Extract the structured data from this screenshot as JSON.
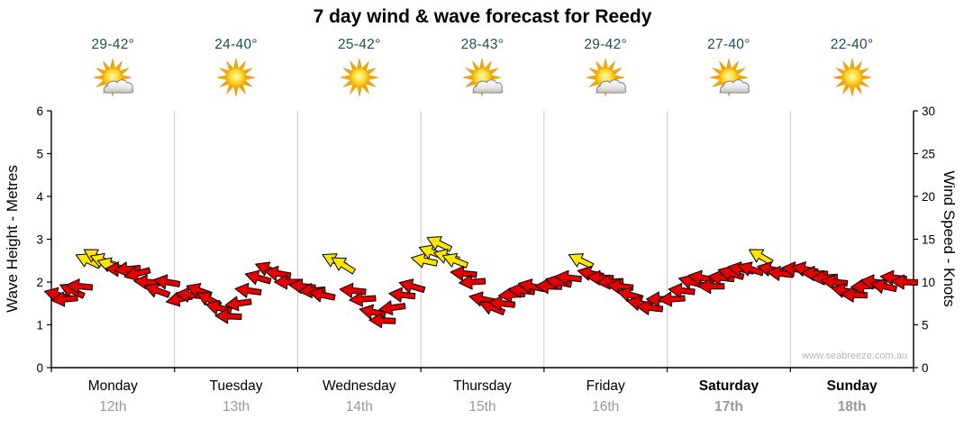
{
  "title": "7 day wind & wave forecast for Reedy",
  "watermark": "www.seabreeze.com.au",
  "days": [
    {
      "name": "Monday",
      "date": "12th",
      "temp": "29-42°",
      "icon": "sun-cloud",
      "bold": false
    },
    {
      "name": "Tuesday",
      "date": "13th",
      "temp": "24-40°",
      "icon": "sun",
      "bold": false
    },
    {
      "name": "Wednesday",
      "date": "14th",
      "temp": "25-42°",
      "icon": "sun",
      "bold": false
    },
    {
      "name": "Thursday",
      "date": "15th",
      "temp": "28-43°",
      "icon": "sun-cloud",
      "bold": false
    },
    {
      "name": "Friday",
      "date": "16th",
      "temp": "29-42°",
      "icon": "sun-cloud",
      "bold": false
    },
    {
      "name": "Saturday",
      "date": "17th",
      "temp": "27-40°",
      "icon": "sun-cloud",
      "bold": true
    },
    {
      "name": "Sunday",
      "date": "18th",
      "temp": "22-40°",
      "icon": "sun",
      "bold": true
    }
  ],
  "axes": {
    "left": {
      "title": "Wave Height - Metres",
      "ticks": [
        0,
        1,
        2,
        3,
        4,
        5,
        6
      ],
      "max": 6
    },
    "right": {
      "title": "Wind Speed - Knots",
      "ticks": [
        0,
        5,
        10,
        15,
        20,
        25,
        30
      ],
      "max": 30
    }
  },
  "colors": {
    "arrow_low": "#e40000",
    "arrow_high": "#ffe600",
    "temp_text": "#1d4f5c",
    "date_text": "#999999",
    "grid": "#c9c9c9",
    "axis": "#000000",
    "watermark": "#b5b5b5"
  },
  "chart_data": {
    "type": "scatter",
    "description": "Wind forecast arrows: x = day offset across the week (0 = start of Monday, 7 = end of Sunday), knots = wind speed read on the right axis (wave height m = knots/5 on left axis), dir = arrow rotation in degrees (0 = pointing right, clockwise). Arrows at or above the yellow threshold are drawn yellow, otherwise red.",
    "x_range": [
      0,
      7
    ],
    "wind_speed_range_knots": [
      0,
      30
    ],
    "wave_height_range_m": [
      0,
      6
    ],
    "yellow_threshold_knots": 12,
    "points": [
      [
        0.05,
        8.5,
        195
      ],
      [
        0.11,
        8,
        175
      ],
      [
        0.17,
        9,
        205
      ],
      [
        0.23,
        9.5,
        185
      ],
      [
        0.3,
        12.5,
        205
      ],
      [
        0.36,
        13,
        210
      ],
      [
        0.42,
        12.5,
        200
      ],
      [
        0.48,
        12,
        198
      ],
      [
        0.55,
        11.5,
        182
      ],
      [
        0.62,
        11.5,
        175
      ],
      [
        0.7,
        11,
        165
      ],
      [
        0.78,
        10,
        185
      ],
      [
        0.86,
        9,
        200
      ],
      [
        0.94,
        10,
        190
      ],
      [
        1.04,
        8,
        168
      ],
      [
        1.12,
        8.5,
        185
      ],
      [
        1.2,
        9,
        200
      ],
      [
        1.28,
        8,
        208
      ],
      [
        1.36,
        7,
        195
      ],
      [
        1.44,
        6,
        182
      ],
      [
        1.52,
        7.5,
        172
      ],
      [
        1.6,
        9,
        188
      ],
      [
        1.68,
        10.5,
        196
      ],
      [
        1.76,
        11.5,
        202
      ],
      [
        1.84,
        11,
        190
      ],
      [
        1.92,
        10,
        180
      ],
      [
        2.04,
        9.5,
        186
      ],
      [
        2.12,
        9,
        176
      ],
      [
        2.2,
        8.5,
        192
      ],
      [
        2.3,
        12.5,
        206
      ],
      [
        2.37,
        12,
        212
      ],
      [
        2.45,
        9,
        186
      ],
      [
        2.53,
        8,
        176
      ],
      [
        2.61,
        6.5,
        192
      ],
      [
        2.69,
        5.5,
        182
      ],
      [
        2.77,
        7,
        172
      ],
      [
        2.85,
        8.5,
        186
      ],
      [
        2.93,
        9.5,
        196
      ],
      [
        3.03,
        12.5,
        192
      ],
      [
        3.09,
        13.5,
        200
      ],
      [
        3.15,
        14.5,
        206
      ],
      [
        3.21,
        13,
        196
      ],
      [
        3.28,
        12.5,
        202
      ],
      [
        3.35,
        11,
        186
      ],
      [
        3.42,
        10,
        176
      ],
      [
        3.5,
        8,
        192
      ],
      [
        3.58,
        7,
        202
      ],
      [
        3.66,
        7.5,
        186
      ],
      [
        3.74,
        8.5,
        176
      ],
      [
        3.82,
        9,
        186
      ],
      [
        3.9,
        9.5,
        192
      ],
      [
        4.04,
        9.5,
        182
      ],
      [
        4.12,
        10,
        192
      ],
      [
        4.2,
        10.5,
        186
      ],
      [
        4.3,
        12.5,
        206
      ],
      [
        4.38,
        11,
        192
      ],
      [
        4.46,
        10.5,
        182
      ],
      [
        4.54,
        10,
        176
      ],
      [
        4.62,
        9.5,
        186
      ],
      [
        4.7,
        8.5,
        196
      ],
      [
        4.78,
        7.5,
        192
      ],
      [
        4.86,
        7,
        186
      ],
      [
        4.94,
        8,
        180
      ],
      [
        5.04,
        8,
        176
      ],
      [
        5.12,
        9,
        186
      ],
      [
        5.2,
        10,
        196
      ],
      [
        5.28,
        10.5,
        190
      ],
      [
        5.36,
        9.5,
        180
      ],
      [
        5.44,
        10.5,
        186
      ],
      [
        5.52,
        11,
        196
      ],
      [
        5.6,
        11.5,
        190
      ],
      [
        5.68,
        11.5,
        198
      ],
      [
        5.76,
        13,
        210
      ],
      [
        5.84,
        11.5,
        192
      ],
      [
        5.92,
        11,
        186
      ],
      [
        6.04,
        11.5,
        186
      ],
      [
        6.12,
        11.5,
        192
      ],
      [
        6.2,
        11,
        182
      ],
      [
        6.28,
        10.5,
        176
      ],
      [
        6.36,
        10,
        186
      ],
      [
        6.44,
        9,
        192
      ],
      [
        6.52,
        8.5,
        182
      ],
      [
        6.6,
        9.5,
        176
      ],
      [
        6.68,
        10,
        186
      ],
      [
        6.76,
        9.5,
        192
      ],
      [
        6.84,
        10.5,
        186
      ],
      [
        6.93,
        10,
        182
      ]
    ]
  }
}
